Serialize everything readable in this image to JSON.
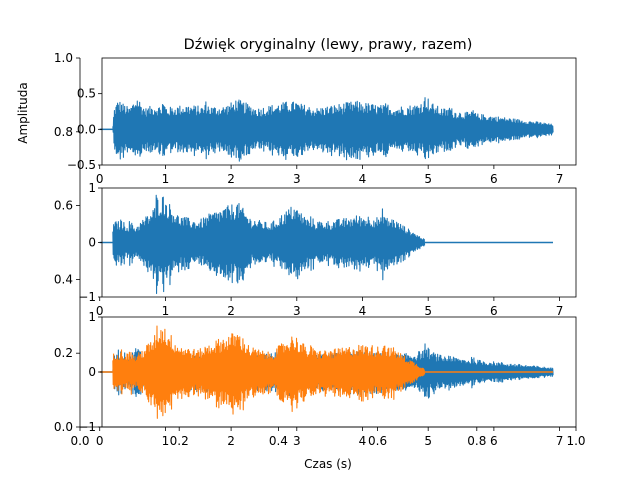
{
  "figure": {
    "title": "Dźwięk oryginalny (lewy, prawy, razem)",
    "xlabel": "Czas (s)",
    "ylabel": "Amplituda",
    "colors": {
      "blue": "#1f77b4",
      "orange": "#ff7f0e"
    },
    "outer_axis": {
      "x_ticks": [
        "0.0",
        "0.2",
        "0.4",
        "0.6",
        "0.8",
        "1.0"
      ],
      "y_ticks": [
        "0.0",
        "0.2",
        "0.4",
        "0.6",
        "0.8",
        "1.0"
      ]
    }
  },
  "chart_data": [
    {
      "type": "line",
      "name": "top",
      "xlim": [
        -0.3,
        7.25
      ],
      "ylim": [
        -0.5,
        1.0
      ],
      "x_ticks": [
        0,
        1,
        2,
        3,
        4,
        5,
        6,
        7
      ],
      "y_ticks": [
        -0.5,
        0.0,
        0.5
      ],
      "y_tick_labels": [
        "−0.5",
        "0.0",
        "0.5"
      ],
      "series": [
        {
          "color": "blue",
          "start": 0.2,
          "end": 6.9,
          "envelope": [
            [
              0.0,
              0.0
            ],
            [
              0.2,
              0.05
            ],
            [
              0.22,
              0.3
            ],
            [
              0.28,
              0.42
            ],
            [
              0.45,
              0.3
            ],
            [
              0.55,
              0.45
            ],
            [
              0.7,
              0.3
            ],
            [
              0.85,
              0.35
            ],
            [
              1.0,
              0.3
            ],
            [
              1.3,
              0.35
            ],
            [
              1.6,
              0.32
            ],
            [
              1.9,
              0.33
            ],
            [
              2.1,
              0.42
            ],
            [
              2.4,
              0.3
            ],
            [
              2.9,
              0.4
            ],
            [
              3.3,
              0.3
            ],
            [
              3.9,
              0.4
            ],
            [
              4.2,
              0.35
            ],
            [
              4.5,
              0.32
            ],
            [
              4.8,
              0.35
            ],
            [
              4.95,
              0.42
            ],
            [
              5.2,
              0.3
            ],
            [
              5.5,
              0.25
            ],
            [
              5.9,
              0.2
            ],
            [
              6.3,
              0.15
            ],
            [
              6.7,
              0.1
            ],
            [
              6.9,
              0.07
            ]
          ],
          "spikes": [
            [
              0.55,
              0.48
            ],
            [
              0.95,
              0.42
            ],
            [
              1.6,
              0.42
            ],
            [
              2.05,
              0.43
            ],
            [
              2.95,
              0.43
            ],
            [
              3.7,
              0.35
            ],
            [
              4.35,
              0.38
            ],
            [
              4.95,
              0.52
            ],
            [
              5.3,
              0.37
            ],
            [
              5.65,
              0.3
            ]
          ]
        }
      ]
    },
    {
      "type": "line",
      "name": "middle",
      "xlim": [
        -0.3,
        7.25
      ],
      "ylim": [
        -1.0,
        1.0
      ],
      "x_ticks": [
        0,
        1,
        2,
        3,
        4,
        5,
        6,
        7
      ],
      "y_ticks": [
        -1,
        0,
        1
      ],
      "y_tick_labels": [
        "−1",
        "0",
        "1"
      ],
      "series": [
        {
          "color": "blue",
          "start": 0.2,
          "end": 4.95,
          "envelope": [
            [
              0.0,
              0.0
            ],
            [
              0.25,
              0.4
            ],
            [
              0.4,
              0.35
            ],
            [
              0.55,
              0.3
            ],
            [
              0.8,
              0.6
            ],
            [
              0.95,
              0.9
            ],
            [
              1.2,
              0.5
            ],
            [
              1.5,
              0.4
            ],
            [
              1.7,
              0.55
            ],
            [
              2.0,
              0.7
            ],
            [
              2.1,
              0.75
            ],
            [
              2.3,
              0.45
            ],
            [
              2.6,
              0.35
            ],
            [
              2.85,
              0.6
            ],
            [
              2.95,
              0.7
            ],
            [
              3.2,
              0.4
            ],
            [
              3.5,
              0.4
            ],
            [
              3.75,
              0.45
            ],
            [
              3.9,
              0.5
            ],
            [
              4.1,
              0.5
            ],
            [
              4.3,
              0.45
            ],
            [
              4.45,
              0.45
            ],
            [
              4.7,
              0.25
            ],
            [
              4.95,
              0.05
            ],
            [
              5.0,
              0.0
            ]
          ],
          "spikes": [
            [
              0.3,
              0.45
            ],
            [
              0.45,
              0.4
            ],
            [
              0.85,
              0.93
            ],
            [
              1.2,
              0.5
            ],
            [
              1.5,
              0.4
            ],
            [
              2.05,
              0.72
            ],
            [
              2.3,
              0.45
            ],
            [
              2.6,
              0.35
            ],
            [
              2.95,
              0.6
            ],
            [
              3.2,
              0.5
            ],
            [
              3.45,
              0.4
            ],
            [
              3.9,
              0.45
            ],
            [
              4.3,
              0.65
            ],
            [
              4.45,
              0.45
            ]
          ]
        }
      ]
    },
    {
      "type": "line",
      "name": "bottom",
      "xlim": [
        -0.3,
        7.25
      ],
      "ylim": [
        -1.0,
        1.0
      ],
      "x_ticks": [
        0,
        1,
        2,
        3,
        4,
        5,
        6,
        7
      ],
      "y_ticks": [
        -1,
        0,
        1
      ],
      "y_tick_labels": [
        "−1",
        "0",
        "1"
      ],
      "series": [
        {
          "color": "blue",
          "start": 0.2,
          "end": 6.9,
          "envelope": [
            [
              0.0,
              0.0
            ],
            [
              0.2,
              0.05
            ],
            [
              0.22,
              0.3
            ],
            [
              0.28,
              0.42
            ],
            [
              0.45,
              0.3
            ],
            [
              0.55,
              0.45
            ],
            [
              0.7,
              0.3
            ],
            [
              0.85,
              0.35
            ],
            [
              1.0,
              0.3
            ],
            [
              1.3,
              0.35
            ],
            [
              1.6,
              0.32
            ],
            [
              1.9,
              0.33
            ],
            [
              2.1,
              0.42
            ],
            [
              2.4,
              0.3
            ],
            [
              2.9,
              0.4
            ],
            [
              3.3,
              0.3
            ],
            [
              3.9,
              0.4
            ],
            [
              4.2,
              0.35
            ],
            [
              4.5,
              0.32
            ],
            [
              4.8,
              0.35
            ],
            [
              4.95,
              0.42
            ],
            [
              5.2,
              0.3
            ],
            [
              5.5,
              0.25
            ],
            [
              5.9,
              0.2
            ],
            [
              6.3,
              0.15
            ],
            [
              6.7,
              0.1
            ],
            [
              6.9,
              0.07
            ]
          ],
          "spikes": [
            [
              0.55,
              0.48
            ],
            [
              0.95,
              0.42
            ],
            [
              1.6,
              0.42
            ],
            [
              2.05,
              0.43
            ],
            [
              2.95,
              0.43
            ],
            [
              3.7,
              0.35
            ],
            [
              4.35,
              0.38
            ],
            [
              4.95,
              0.52
            ],
            [
              5.3,
              0.37
            ],
            [
              5.65,
              0.3
            ]
          ]
        },
        {
          "color": "orange",
          "start": 0.2,
          "end": 4.95,
          "tail_end": 6.9,
          "envelope": [
            [
              0.0,
              0.0
            ],
            [
              0.25,
              0.4
            ],
            [
              0.4,
              0.35
            ],
            [
              0.55,
              0.3
            ],
            [
              0.8,
              0.6
            ],
            [
              0.95,
              0.9
            ],
            [
              1.2,
              0.5
            ],
            [
              1.5,
              0.4
            ],
            [
              1.7,
              0.55
            ],
            [
              2.0,
              0.7
            ],
            [
              2.1,
              0.75
            ],
            [
              2.3,
              0.45
            ],
            [
              2.6,
              0.35
            ],
            [
              2.85,
              0.6
            ],
            [
              2.95,
              0.7
            ],
            [
              3.2,
              0.4
            ],
            [
              3.5,
              0.4
            ],
            [
              3.75,
              0.45
            ],
            [
              3.9,
              0.5
            ],
            [
              4.1,
              0.5
            ],
            [
              4.3,
              0.45
            ],
            [
              4.45,
              0.45
            ],
            [
              4.7,
              0.25
            ],
            [
              4.95,
              0.05
            ],
            [
              5.0,
              0.0
            ]
          ],
          "spikes": [
            [
              0.3,
              0.45
            ],
            [
              0.45,
              0.4
            ],
            [
              0.85,
              0.93
            ],
            [
              1.2,
              0.5
            ],
            [
              1.5,
              0.4
            ],
            [
              2.05,
              0.72
            ],
            [
              2.3,
              0.45
            ],
            [
              2.6,
              0.35
            ],
            [
              2.95,
              0.6
            ],
            [
              3.2,
              0.5
            ],
            [
              3.45,
              0.4
            ],
            [
              3.9,
              0.45
            ],
            [
              4.3,
              0.65
            ],
            [
              4.45,
              0.45
            ]
          ]
        }
      ]
    }
  ]
}
